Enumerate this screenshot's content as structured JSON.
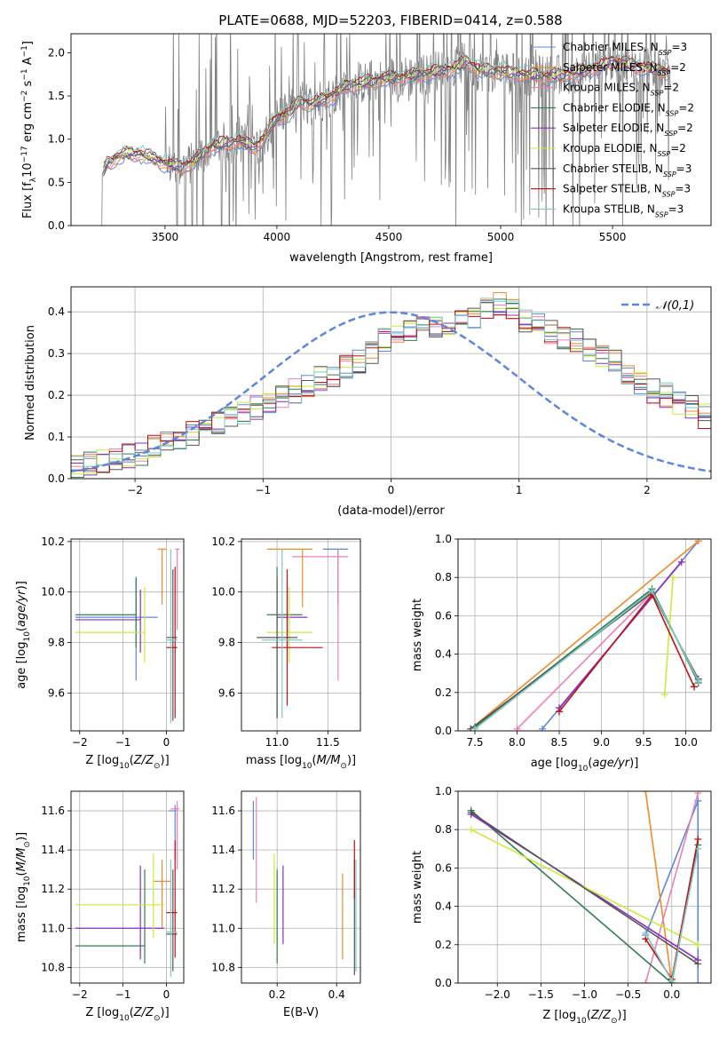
{
  "figure": {
    "title": "PLATE=0688, MJD=52203, FIBERID=0414, z=0.588"
  },
  "models": [
    {
      "name": "Chabrier MILES",
      "nssp": "3",
      "color": "#5b87e0"
    },
    {
      "name": "Salpeter MILES",
      "nssp": "2",
      "color": "#f08a2a"
    },
    {
      "name": "Kroupa MILES",
      "nssp": "2",
      "color": "#ee7fb8"
    },
    {
      "name": "Chabrier ELODIE",
      "nssp": "2",
      "color": "#2f7f4f"
    },
    {
      "name": "Salpeter ELODIE",
      "nssp": "2",
      "color": "#8a2fc0"
    },
    {
      "name": "Kroupa ELODIE",
      "nssp": "2",
      "color": "#c8ec3a"
    },
    {
      "name": "Chabrier STELIB",
      "nssp": "3",
      "color": "#555555"
    },
    {
      "name": "Salpeter STELIB",
      "nssp": "3",
      "color": "#c01010"
    },
    {
      "name": "Kroupa STELIB",
      "nssp": "3",
      "color": "#7fc6c6"
    }
  ],
  "chart_data": [
    {
      "id": "spectrum",
      "type": "line",
      "xlabel": "wavelength [Angstrom, rest frame]",
      "ylabel": "Flux [f_λ 10^-17 erg cm^-2 s^-1 A^-1]",
      "xlim": [
        3080,
        5940
      ],
      "ylim": [
        0,
        2.22
      ],
      "xticks": [
        3500,
        4000,
        4500,
        5000,
        5500
      ],
      "yticks": [
        0.0,
        0.5,
        1.0,
        1.5,
        2.0
      ],
      "legend": "top-right",
      "data_color": "#808080",
      "data_noisy_start": 3500,
      "continuum": {
        "x": [
          3220,
          3240,
          3280,
          3320,
          3380,
          3440,
          3500,
          3560,
          3620,
          3700,
          3760,
          3830,
          3900,
          3950,
          4000,
          4060,
          4100,
          4150,
          4250,
          4300,
          4400,
          4500,
          4600,
          4700,
          4800,
          4850,
          4900,
          5000,
          5100,
          5200,
          5300,
          5400,
          5500,
          5600,
          5700,
          5760
        ],
        "y": [
          0.6,
          0.72,
          0.78,
          0.82,
          0.84,
          0.78,
          0.72,
          0.68,
          0.72,
          0.9,
          0.95,
          0.98,
          0.9,
          1.05,
          1.25,
          1.3,
          1.45,
          1.4,
          1.5,
          1.6,
          1.66,
          1.7,
          1.73,
          1.77,
          1.83,
          1.9,
          1.8,
          1.78,
          1.75,
          1.72,
          1.75,
          1.8,
          1.9,
          1.85,
          1.8,
          1.78
        ]
      }
    },
    {
      "id": "residuals",
      "type": "histogram",
      "xlabel": "(data-model)/error",
      "ylabel": "Normed distribution",
      "xlim": [
        -2.5,
        2.5
      ],
      "ylim": [
        0,
        0.46
      ],
      "xticks": [
        -2,
        -1,
        0,
        1,
        2
      ],
      "yticks": [
        0.0,
        0.1,
        0.2,
        0.3,
        0.4
      ],
      "legend": "top-right",
      "normal_label": "𝒩(0,1)",
      "normal_color": "#5b87e0",
      "bin_start": -2.5,
      "bin_width": 0.1,
      "template": [
        0.03,
        0.035,
        0.04,
        0.05,
        0.055,
        0.06,
        0.08,
        0.09,
        0.1,
        0.11,
        0.12,
        0.13,
        0.15,
        0.16,
        0.17,
        0.18,
        0.2,
        0.21,
        0.22,
        0.24,
        0.25,
        0.27,
        0.28,
        0.3,
        0.33,
        0.35,
        0.36,
        0.37,
        0.36,
        0.37,
        0.38,
        0.39,
        0.41,
        0.42,
        0.4,
        0.38,
        0.37,
        0.35,
        0.34,
        0.33,
        0.31,
        0.29,
        0.28,
        0.25,
        0.23,
        0.21,
        0.2,
        0.18,
        0.17,
        0.15,
        0.14,
        0.13,
        0.12,
        0.11,
        0.1,
        0.09,
        0.085,
        0.08,
        0.07,
        0.065
      ]
    },
    {
      "id": "age-vs-Z",
      "type": "scatter",
      "xlabel": "Z [log₁₀(Z/Z☉)]",
      "ylabel": "age [log₁₀(age/yr)]",
      "xlim": [
        -2.2,
        0.4
      ],
      "ylim": [
        9.45,
        10.21
      ],
      "xticks": [
        -2,
        -1,
        0
      ],
      "yticks": [
        9.6,
        9.8,
        10.0,
        10.2
      ],
      "errorbars": [
        {
          "m": 0,
          "x": [
            -2.1,
            -0.2
          ],
          "y": 9.9,
          "xc": -0.7,
          "yr": [
            9.65,
            10.05
          ]
        },
        {
          "m": 1,
          "x": [
            -0.2,
            0.0
          ],
          "y": 10.17,
          "xc": -0.1,
          "yr": [
            9.95,
            10.17
          ]
        },
        {
          "m": 2,
          "x": [
            0.2,
            0.3
          ],
          "y": 10.17,
          "xc": 0.25,
          "yr": [
            9.85,
            10.17
          ]
        },
        {
          "m": 3,
          "x": [
            -2.1,
            -0.7
          ],
          "y": 9.91,
          "xc": -0.7,
          "yr": [
            9.78,
            10.06
          ]
        },
        {
          "m": 4,
          "x": [
            -2.1,
            -0.6
          ],
          "y": 9.89,
          "xc": -0.6,
          "yr": [
            9.76,
            10.01
          ]
        },
        {
          "m": 5,
          "x": [
            -2.1,
            -0.5
          ],
          "y": 9.84,
          "xc": -0.5,
          "yr": [
            9.72,
            10.02
          ]
        },
        {
          "m": 6,
          "x": [
            0.0,
            0.25
          ],
          "y": 9.82,
          "xc": 0.15,
          "yr": [
            9.49,
            10.09
          ]
        },
        {
          "m": 7,
          "x": [
            0.0,
            0.25
          ],
          "y": 9.78,
          "xc": 0.2,
          "yr": [
            9.5,
            10.1
          ]
        },
        {
          "m": 8,
          "x": [
            0.0,
            0.25
          ],
          "y": 9.81,
          "xc": 0.1,
          "yr": [
            9.48,
            10.17
          ]
        }
      ]
    },
    {
      "id": "age-vs-mass",
      "type": "scatter",
      "xlabel": "mass [log₁₀(M/M☉)]",
      "ylabel": "",
      "xlim": [
        10.65,
        11.82
      ],
      "ylim": [
        9.45,
        10.21
      ],
      "xticks": [
        11.0,
        11.5
      ],
      "yticks": [
        9.6,
        9.8,
        10.0,
        10.2
      ],
      "errorbars": [
        {
          "m": 0,
          "x": [
            11.45,
            11.7
          ],
          "y": 10.17,
          "xc": 11.6,
          "yr": [
            9.95,
            10.17
          ]
        },
        {
          "m": 1,
          "x": [
            10.9,
            11.35
          ],
          "y": 10.17,
          "xc": 11.25,
          "yr": [
            9.94,
            10.17
          ]
        },
        {
          "m": 2,
          "x": [
            11.15,
            11.7
          ],
          "y": 10.14,
          "xc": 11.6,
          "yr": [
            9.65,
            10.17
          ]
        },
        {
          "m": 3,
          "x": [
            10.9,
            11.25
          ],
          "y": 9.91,
          "xc": 11.0,
          "yr": [
            9.5,
            10.1
          ]
        },
        {
          "m": 4,
          "x": [
            11.0,
            11.3
          ],
          "y": 9.9,
          "xc": 11.1,
          "yr": [
            9.77,
            10.03
          ]
        },
        {
          "m": 5,
          "x": [
            10.9,
            11.35
          ],
          "y": 9.84,
          "xc": 11.12,
          "yr": [
            9.72,
            10.02
          ]
        },
        {
          "m": 6,
          "x": [
            10.8,
            11.2
          ],
          "y": 9.82,
          "xc": 11.0,
          "yr": [
            9.5,
            10.06
          ]
        },
        {
          "m": 7,
          "x": [
            10.95,
            11.45
          ],
          "y": 9.78,
          "xc": 11.1,
          "yr": [
            9.55,
            10.09
          ]
        },
        {
          "m": 8,
          "x": [
            10.85,
            11.25
          ],
          "y": 9.81,
          "xc": 11.05,
          "yr": [
            9.5,
            10.17
          ]
        }
      ]
    },
    {
      "id": "weight-vs-age",
      "type": "line",
      "xlabel": "age [log₁₀(age/yr)]",
      "ylabel": "mass weight",
      "xlim": [
        7.3,
        10.3
      ],
      "ylim": [
        0,
        1.0
      ],
      "xticks": [
        7.5,
        8.0,
        8.5,
        9.0,
        9.5,
        10.0
      ],
      "yticks": [
        0.0,
        0.2,
        0.4,
        0.6,
        0.8,
        1.0
      ],
      "series": [
        {
          "m": 0,
          "x": [
            8.3,
            10.15
          ],
          "y": [
            0.01,
            0.99
          ]
        },
        {
          "m": 1,
          "x": [
            7.45,
            10.15
          ],
          "y": [
            0.01,
            0.99
          ]
        },
        {
          "m": 2,
          "x": [
            8.0,
            9.6
          ],
          "y": [
            0.01,
            0.72
          ]
        },
        {
          "m": 3,
          "x": [
            7.5,
            9.6,
            10.15
          ],
          "y": [
            0.02,
            0.74,
            0.25
          ]
        },
        {
          "m": 4,
          "x": [
            8.5,
            9.95
          ],
          "y": [
            0.12,
            0.88
          ]
        },
        {
          "m": 5,
          "x": [
            9.75,
            9.85
          ],
          "y": [
            0.19,
            0.8
          ]
        },
        {
          "m": 6,
          "x": [
            7.45,
            9.6,
            10.15
          ],
          "y": [
            0.01,
            0.72,
            0.27
          ]
        },
        {
          "m": 7,
          "x": [
            8.5,
            9.6,
            10.1
          ],
          "y": [
            0.1,
            0.71,
            0.23
          ]
        },
        {
          "m": 8,
          "x": [
            7.5,
            9.6,
            10.15
          ],
          "y": [
            0.01,
            0.73,
            0.26
          ]
        }
      ]
    },
    {
      "id": "mass-vs-Z",
      "type": "scatter",
      "xlabel": "Z [log₁₀(Z/Z☉)]",
      "ylabel": "mass [log₁₀(M/M☉)]",
      "xlim": [
        -2.2,
        0.4
      ],
      "ylim": [
        10.72,
        11.7
      ],
      "xticks": [
        -2,
        -1,
        0
      ],
      "yticks": [
        10.8,
        11.0,
        11.2,
        11.4,
        11.6
      ],
      "errorbars": [
        {
          "m": 0,
          "x": [
            0.05,
            0.25
          ],
          "y": 11.6,
          "xc": 0.2,
          "yr": [
            11.35,
            11.63
          ]
        },
        {
          "m": 1,
          "x": [
            -0.3,
            0.1
          ],
          "y": 11.24,
          "xc": -0.1,
          "yr": [
            11.0,
            11.35
          ]
        },
        {
          "m": 2,
          "x": [
            0.1,
            0.3
          ],
          "y": 11.61,
          "xc": 0.25,
          "yr": [
            11.3,
            11.65
          ]
        },
        {
          "m": 3,
          "x": [
            -2.1,
            -0.5
          ],
          "y": 10.91,
          "xc": -0.5,
          "yr": [
            10.82,
            11.3
          ]
        },
        {
          "m": 4,
          "x": [
            -2.1,
            -0.05
          ],
          "y": 11.0,
          "xc": -0.6,
          "yr": [
            10.84,
            11.32
          ]
        },
        {
          "m": 5,
          "x": [
            -2.1,
            -0.05
          ],
          "y": 11.12,
          "xc": -0.3,
          "yr": [
            10.95,
            11.38
          ]
        },
        {
          "m": 6,
          "x": [
            0.0,
            0.25
          ],
          "y": 10.97,
          "xc": 0.15,
          "yr": [
            10.78,
            11.3
          ]
        },
        {
          "m": 7,
          "x": [
            0.0,
            0.25
          ],
          "y": 11.08,
          "xc": 0.2,
          "yr": [
            10.85,
            11.45
          ]
        },
        {
          "m": 8,
          "x": [
            0.0,
            0.25
          ],
          "y": 10.98,
          "xc": 0.1,
          "yr": [
            10.75,
            11.35
          ]
        }
      ]
    },
    {
      "id": "mass-vs-ebv",
      "type": "scatter",
      "xlabel": "E(B-V)",
      "ylabel": "",
      "xlim": [
        0.08,
        0.48
      ],
      "ylim": [
        10.72,
        11.7
      ],
      "xticks": [
        0.2,
        0.4
      ],
      "yticks": [
        10.8,
        11.0,
        11.2,
        11.4,
        11.6
      ],
      "errorbars": [
        {
          "m": 0,
          "x": [
            0.12,
            0.12
          ],
          "y": 11.5,
          "xc": 0.12,
          "yr": [
            11.35,
            11.65
          ]
        },
        {
          "m": 2,
          "x": [
            0.13,
            0.13
          ],
          "y": 11.4,
          "xc": 0.13,
          "yr": [
            11.13,
            11.67
          ]
        },
        {
          "m": 5,
          "x": [
            0.19,
            0.19
          ],
          "y": 11.2,
          "xc": 0.19,
          "yr": [
            10.92,
            11.38
          ]
        },
        {
          "m": 3,
          "x": [
            0.2,
            0.2
          ],
          "y": 11.0,
          "xc": 0.2,
          "yr": [
            10.82,
            11.3
          ]
        },
        {
          "m": 4,
          "x": [
            0.22,
            0.22
          ],
          "y": 11.1,
          "xc": 0.22,
          "yr": [
            10.92,
            11.32
          ]
        },
        {
          "m": 1,
          "x": [
            0.42,
            0.42
          ],
          "y": 11.1,
          "xc": 0.42,
          "yr": [
            10.84,
            11.28
          ]
        },
        {
          "m": 6,
          "x": [
            0.46,
            0.46
          ],
          "y": 11.0,
          "xc": 0.46,
          "yr": [
            10.76,
            11.35
          ]
        },
        {
          "m": 7,
          "x": [
            0.46,
            0.46
          ],
          "y": 11.3,
          "xc": 0.46,
          "yr": [
            11.15,
            11.45
          ]
        },
        {
          "m": 8,
          "x": [
            0.465,
            0.465
          ],
          "y": 11.0,
          "xc": 0.465,
          "yr": [
            10.78,
            11.35
          ]
        }
      ]
    },
    {
      "id": "weight-vs-Z",
      "type": "line",
      "xlabel": "Z [log₁₀(Z/Z☉)]",
      "ylabel": "mass weight",
      "xlim": [
        -2.45,
        0.45
      ],
      "ylim": [
        0,
        1.0
      ],
      "xticks": [
        -2.0,
        -1.5,
        -1.0,
        -0.5,
        0.0
      ],
      "yticks": [
        0.0,
        0.2,
        0.4,
        0.6,
        0.8,
        1.0
      ],
      "series": [
        {
          "m": 0,
          "x": [
            -0.3,
            0.3,
            0.3
          ],
          "y": [
            0.25,
            0.95,
            0.0
          ]
        },
        {
          "m": 1,
          "x": [
            -0.3,
            0.0
          ],
          "y": [
            1.0,
            0.0
          ]
        },
        {
          "m": 2,
          "x": [
            -0.3,
            0.3
          ],
          "y": [
            0.0,
            0.99
          ]
        },
        {
          "m": 3,
          "x": [
            -2.3,
            0.0,
            0.3
          ],
          "y": [
            0.9,
            0.0,
            0.72
          ]
        },
        {
          "m": 4,
          "x": [
            -2.3,
            0.3
          ],
          "y": [
            0.88,
            0.12
          ]
        },
        {
          "m": 5,
          "x": [
            -2.3,
            0.3
          ],
          "y": [
            0.8,
            0.2
          ]
        },
        {
          "m": 6,
          "x": [
            -2.3,
            0.3
          ],
          "y": [
            0.89,
            0.1
          ]
        },
        {
          "m": 7,
          "x": [
            -0.3,
            0.0,
            0.3
          ],
          "y": [
            0.23,
            0.02,
            0.75
          ]
        },
        {
          "m": 8,
          "x": [
            -0.3,
            0.0,
            0.3
          ],
          "y": [
            0.26,
            0.01,
            0.7
          ]
        }
      ]
    }
  ]
}
